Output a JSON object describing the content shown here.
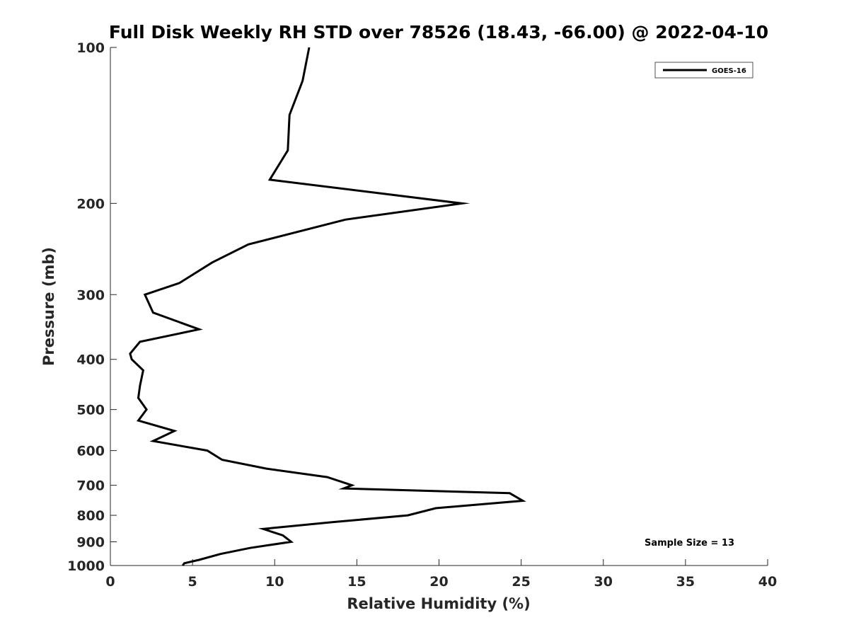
{
  "chart_data": {
    "type": "line",
    "title": "Full Disk Weekly RH STD over 78526 (18.43, -66.00) @ 2022-04-10",
    "xlabel": "Relative Humidity (%)",
    "ylabel": "Pressure (mb)",
    "xlim": [
      0,
      40
    ],
    "ylim": [
      100,
      1000
    ],
    "y_scale": "log",
    "y_reversed": true,
    "x_ticks": [
      0,
      5,
      10,
      15,
      20,
      25,
      30,
      35,
      40
    ],
    "x_tick_labels": [
      "0",
      "5",
      "10",
      "15",
      "20",
      "25",
      "30",
      "35",
      "40"
    ],
    "y_ticks": [
      100,
      200,
      300,
      400,
      500,
      600,
      700,
      800,
      900,
      1000
    ],
    "y_tick_labels": [
      "100",
      "200",
      "300",
      "400",
      "500",
      "600",
      "700",
      "800",
      "900",
      "1000"
    ],
    "grid": false,
    "legend_position": "top-right",
    "series": [
      {
        "name": "GOES-16",
        "color": "#000000",
        "points": [
          [
            12.1,
            100
          ],
          [
            11.7,
            116
          ],
          [
            10.9,
            135
          ],
          [
            10.8,
            158
          ],
          [
            9.7,
            180
          ],
          [
            21.4,
            200
          ],
          [
            14.3,
            215
          ],
          [
            8.4,
            240
          ],
          [
            6.2,
            260
          ],
          [
            4.2,
            285
          ],
          [
            2.1,
            300
          ],
          [
            2.6,
            325
          ],
          [
            5.4,
            350
          ],
          [
            1.8,
            370
          ],
          [
            1.2,
            390
          ],
          [
            1.3,
            400
          ],
          [
            2.0,
            420
          ],
          [
            1.8,
            450
          ],
          [
            1.7,
            475
          ],
          [
            2.2,
            500
          ],
          [
            1.7,
            525
          ],
          [
            3.9,
            550
          ],
          [
            2.6,
            575
          ],
          [
            5.9,
            600
          ],
          [
            6.8,
            625
          ],
          [
            9.5,
            650
          ],
          [
            13.2,
            675
          ],
          [
            14.7,
            700
          ],
          [
            14.2,
            710
          ],
          [
            24.3,
            725
          ],
          [
            25.1,
            750
          ],
          [
            19.8,
            775
          ],
          [
            18.1,
            800
          ],
          [
            13.5,
            825
          ],
          [
            9.3,
            850
          ],
          [
            10.5,
            875
          ],
          [
            11.0,
            900
          ],
          [
            8.5,
            925
          ],
          [
            6.7,
            950
          ],
          [
            5.4,
            975
          ],
          [
            4.5,
            990
          ],
          [
            4.4,
            1000
          ]
        ]
      }
    ],
    "annotations": [
      {
        "text": "Sample Size = 13"
      }
    ]
  }
}
